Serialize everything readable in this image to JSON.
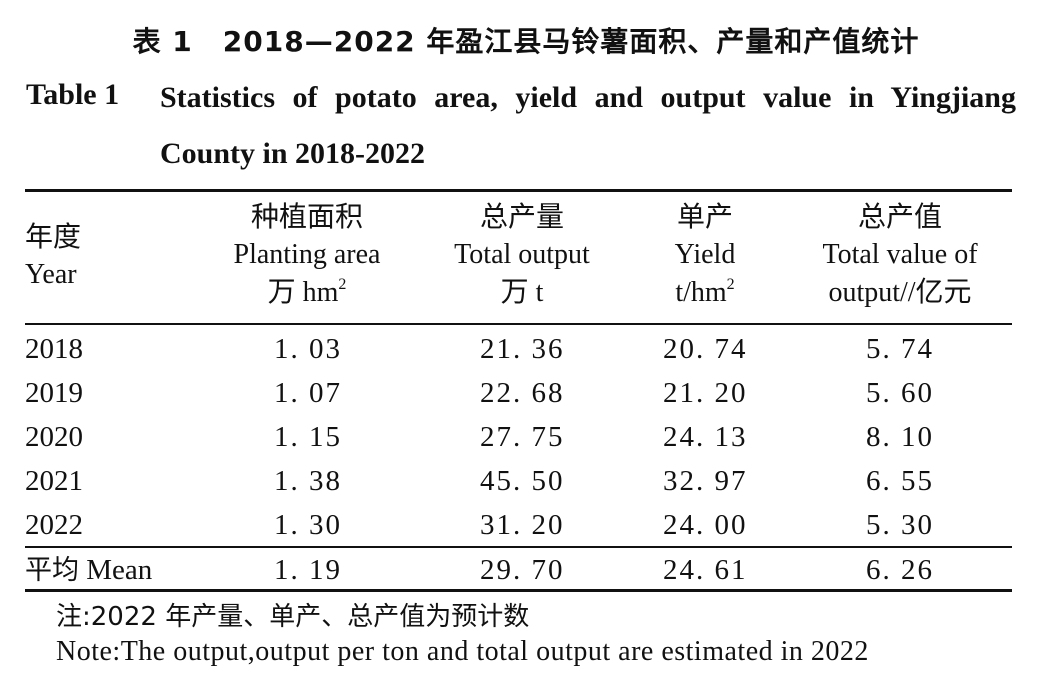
{
  "title_cn": {
    "label": "表 1",
    "text": "2018—2022 年盈江县马铃薯面积、产量和产值统计"
  },
  "title_en": {
    "label": "Table 1",
    "text": "Statistics of potato area, yield and output value in Yingjiang County in 2018-2022"
  },
  "headers": {
    "year": {
      "cn": "年度",
      "en": "Year"
    },
    "area": {
      "cn": "种植面积",
      "en": "Planting area",
      "unit": "万 hm",
      "unit_sup": "2"
    },
    "total": {
      "cn": "总产量",
      "en": "Total output",
      "unit": "万 t"
    },
    "yield": {
      "cn": "单产",
      "en": "Yield",
      "unit": "t/hm",
      "unit_sup": "2"
    },
    "value": {
      "cn": "总产值",
      "en": "Total value of",
      "unit": "output//亿元"
    }
  },
  "rows": [
    {
      "year": "2018",
      "area": "1. 03",
      "total": "21. 36",
      "yield": "20. 74",
      "value": "5. 74"
    },
    {
      "year": "2019",
      "area": "1. 07",
      "total": "22. 68",
      "yield": "21. 20",
      "value": "5. 60"
    },
    {
      "year": "2020",
      "area": "1. 15",
      "total": "27. 75",
      "yield": "24. 13",
      "value": "8. 10"
    },
    {
      "year": "2021",
      "area": "1. 38",
      "total": "45. 50",
      "yield": "32. 97",
      "value": "6. 55"
    },
    {
      "year": "2022",
      "area": "1. 30",
      "total": "31. 20",
      "yield": "24. 00",
      "value": "5. 30"
    }
  ],
  "mean_row": {
    "label_cn": "平均",
    "label_en": "Mean",
    "area": "1. 19",
    "total": "29. 70",
    "yield": "24. 61",
    "value": "6. 26"
  },
  "notes": {
    "cn": "注:2022 年产量、单产、总产值为预计数",
    "en": "Note:The output,output per ton and total output are estimated in 2022"
  }
}
